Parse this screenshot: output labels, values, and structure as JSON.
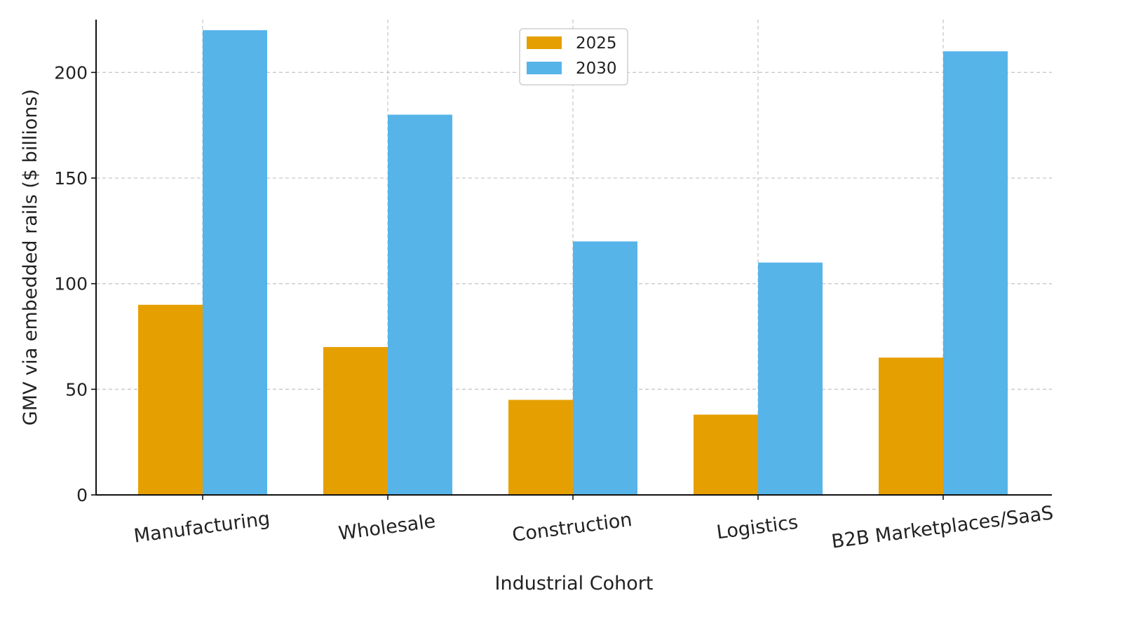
{
  "chart_data": {
    "type": "bar",
    "title": "",
    "xlabel": "Industrial Cohort",
    "ylabel": "GMV via embedded rails ($ billions)",
    "ylim": [
      0,
      225
    ],
    "yticks": [
      0,
      50,
      100,
      150,
      200
    ],
    "categories": [
      "Manufacturing",
      "Wholesale",
      "Construction",
      "Logistics",
      "B2B Marketplaces/SaaS"
    ],
    "series": [
      {
        "name": "2025",
        "color": "#E69F00",
        "values": [
          90,
          70,
          45,
          38,
          65
        ]
      },
      {
        "name": "2030",
        "color": "#56B4E9",
        "values": [
          220,
          180,
          120,
          110,
          210
        ]
      }
    ],
    "grid": true,
    "legend_position": "top-center"
  }
}
